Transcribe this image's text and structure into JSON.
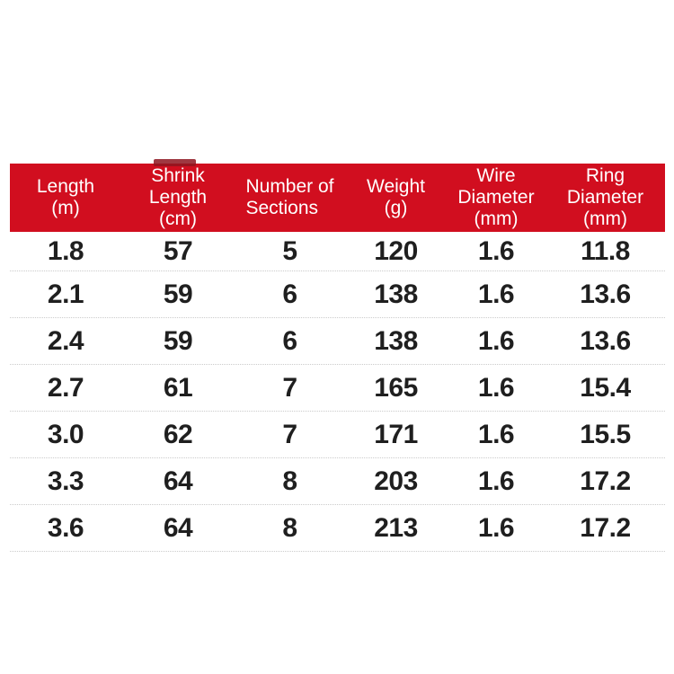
{
  "table": {
    "columns": [
      {
        "label": "Length\n(m)"
      },
      {
        "label": "Shrink\nLength\n(cm)"
      },
      {
        "label": "Number of\nSections"
      },
      {
        "label": "Weight\n(g)"
      },
      {
        "label": "Wire\nDiameter\n(mm)"
      },
      {
        "label": "Ring\nDiameter\n(mm)"
      }
    ],
    "rows": [
      [
        "1.8",
        "57",
        "5",
        "120",
        "1.6",
        "11.8"
      ],
      [
        "2.1",
        "59",
        "6",
        "138",
        "1.6",
        "13.6"
      ],
      [
        "2.4",
        "59",
        "6",
        "138",
        "1.6",
        "13.6"
      ],
      [
        "2.7",
        "61",
        "7",
        "165",
        "1.6",
        "15.4"
      ],
      [
        "3.0",
        "62",
        "7",
        "171",
        "1.6",
        "15.5"
      ],
      [
        "3.3",
        "64",
        "8",
        "203",
        "1.6",
        "17.2"
      ],
      [
        "3.6",
        "64",
        "8",
        "213",
        "1.6",
        "17.2"
      ]
    ]
  },
  "colors": {
    "header_bg": "#d10e1f",
    "header_text": "#ffffff",
    "row_text": "#1f1f1f",
    "separator": "#cbcbcb",
    "artifact_red": "#8e1520",
    "background": "#ffffff"
  }
}
